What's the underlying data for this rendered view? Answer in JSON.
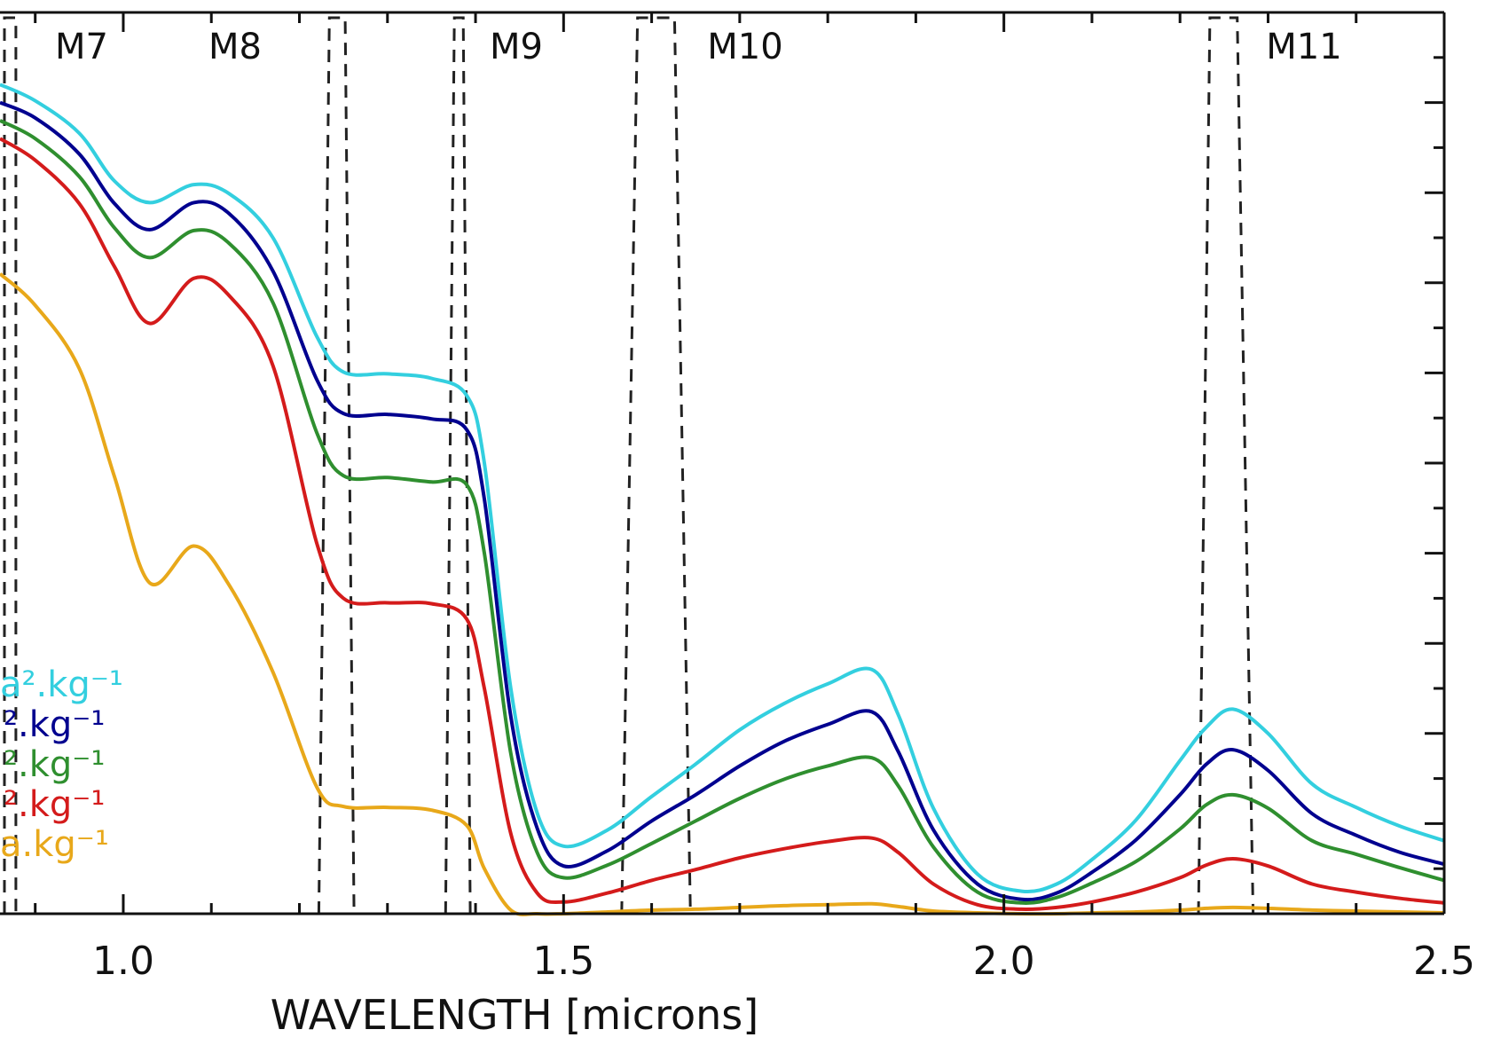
{
  "chart_data": {
    "type": "line",
    "xlabel": "WAVELENGTH [microns]",
    "ylabel": "",
    "xlim": [
      0.86,
      2.5
    ],
    "x_ticks": [
      1.0,
      1.5,
      2.0,
      2.5
    ],
    "x_tick_labels": [
      "1.0",
      "1.5",
      "2.0",
      "2.5"
    ],
    "ylim": [
      0,
      1
    ],
    "grid": false,
    "legend_position": "lower-left",
    "x": [
      0.86,
      0.9,
      0.95,
      0.99,
      1.03,
      1.08,
      1.12,
      1.17,
      1.22,
      1.25,
      1.3,
      1.35,
      1.39,
      1.41,
      1.44,
      1.47,
      1.5,
      1.55,
      1.6,
      1.65,
      1.7,
      1.75,
      1.8,
      1.85,
      1.88,
      1.92,
      1.97,
      2.02,
      2.06,
      2.1,
      2.15,
      2.2,
      2.23,
      2.26,
      2.3,
      2.35,
      2.4,
      2.45,
      2.5
    ],
    "series": [
      {
        "legend_text": "a².kg⁻¹",
        "color": "#33cfdf",
        "values": [
          0.92,
          0.902,
          0.866,
          0.813,
          0.789,
          0.809,
          0.799,
          0.75,
          0.64,
          0.601,
          0.599,
          0.594,
          0.575,
          0.5,
          0.25,
          0.112,
          0.075,
          0.093,
          0.13,
          0.166,
          0.204,
          0.233,
          0.255,
          0.271,
          0.221,
          0.117,
          0.044,
          0.025,
          0.033,
          0.06,
          0.104,
          0.17,
          0.207,
          0.227,
          0.2,
          0.144,
          0.118,
          0.097,
          0.081
        ]
      },
      {
        "legend_text": "².kg⁻¹",
        "color": "#00008f",
        "values": [
          0.9,
          0.883,
          0.843,
          0.788,
          0.759,
          0.789,
          0.777,
          0.713,
          0.592,
          0.555,
          0.554,
          0.549,
          0.537,
          0.46,
          0.219,
          0.095,
          0.053,
          0.07,
          0.103,
          0.132,
          0.164,
          0.191,
          0.21,
          0.224,
          0.18,
          0.093,
          0.033,
          0.016,
          0.023,
          0.046,
          0.082,
          0.132,
          0.166,
          0.182,
          0.159,
          0.111,
          0.087,
          0.068,
          0.055
        ]
      },
      {
        "legend_text": "².kg⁻¹",
        "color": "#2f8f2f",
        "values": [
          0.88,
          0.86,
          0.818,
          0.761,
          0.728,
          0.758,
          0.744,
          0.678,
          0.533,
          0.486,
          0.484,
          0.479,
          0.476,
          0.4,
          0.178,
          0.068,
          0.04,
          0.054,
          0.078,
          0.103,
          0.128,
          0.149,
          0.164,
          0.173,
          0.142,
          0.074,
          0.024,
          0.012,
          0.018,
          0.034,
          0.058,
          0.094,
          0.121,
          0.132,
          0.117,
          0.081,
          0.066,
          0.051,
          0.037
        ]
      },
      {
        "legend_text": "².kg⁻¹",
        "color": "#d41b1b",
        "values": [
          0.86,
          0.836,
          0.788,
          0.718,
          0.655,
          0.705,
          0.686,
          0.608,
          0.41,
          0.35,
          0.345,
          0.344,
          0.327,
          0.25,
          0.089,
          0.023,
          0.013,
          0.023,
          0.037,
          0.049,
          0.062,
          0.072,
          0.08,
          0.084,
          0.068,
          0.033,
          0.01,
          0.005,
          0.007,
          0.013,
          0.024,
          0.04,
          0.054,
          0.061,
          0.053,
          0.033,
          0.024,
          0.017,
          0.012
        ]
      },
      {
        "legend_text": "a.kg⁻¹",
        "color": "#e8a81a",
        "values": [
          0.71,
          0.675,
          0.605,
          0.485,
          0.367,
          0.408,
          0.365,
          0.268,
          0.14,
          0.119,
          0.118,
          0.115,
          0.098,
          0.05,
          0.004,
          0.0,
          0.0,
          0.002,
          0.004,
          0.005,
          0.007,
          0.009,
          0.01,
          0.011,
          0.008,
          0.003,
          0.001,
          0.0,
          0.0,
          0.001,
          0.002,
          0.004,
          0.006,
          0.007,
          0.006,
          0.004,
          0.003,
          0.002,
          0.001
        ]
      }
    ],
    "bands": [
      {
        "label": "M7",
        "x_edges": [
          0.865,
          0.865,
          0.878,
          0.878
        ]
      },
      {
        "label": "M8",
        "x_edges": [
          1.222,
          1.234,
          1.252,
          1.262
        ]
      },
      {
        "label": "M9",
        "x_edges": [
          1.366,
          1.376,
          1.386,
          1.394
        ]
      },
      {
        "label": "M10",
        "x_edges": [
          1.566,
          1.584,
          1.626,
          1.644
        ]
      },
      {
        "label": "M11",
        "x_edges": [
          2.221,
          2.234,
          2.265,
          2.283
        ]
      }
    ],
    "band_label_text": [
      "M7",
      "M8",
      "M9",
      "M10",
      "M11"
    ]
  }
}
